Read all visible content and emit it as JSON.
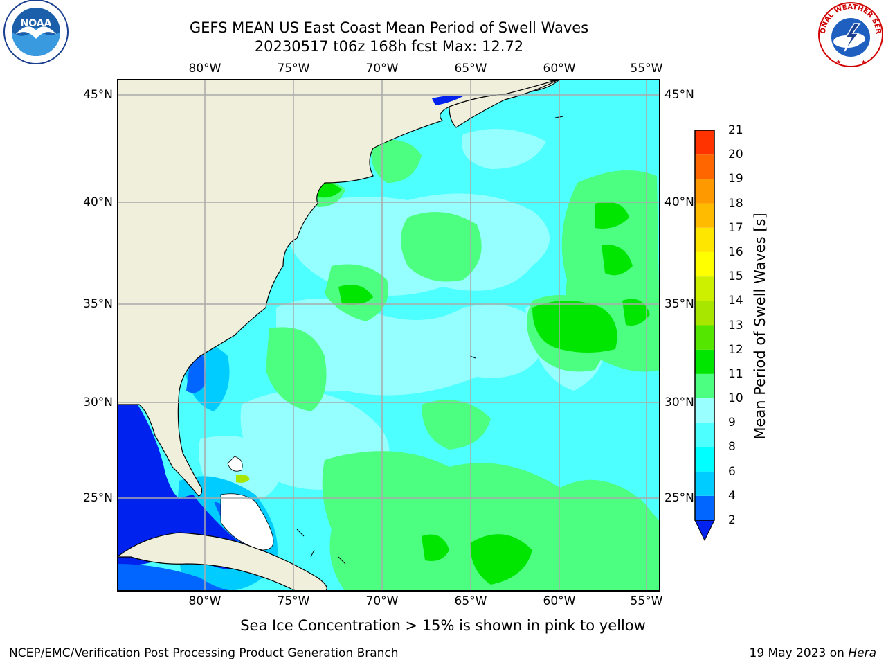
{
  "header": {
    "title_line1": "GEFS MEAN US East Coast Mean Period of Swell Waves",
    "title_line2": "20230517 t06z 168h fcst   Max: 12.72"
  },
  "map": {
    "lon_labels": [
      "80°W",
      "75°W",
      "70°W",
      "65°W",
      "60°W",
      "55°W"
    ],
    "lat_labels": [
      "45°N",
      "40°N",
      "35°N",
      "30°N",
      "25°N"
    ],
    "lon_range": [
      -85,
      -54
    ],
    "lat_range": [
      20.5,
      46.0
    ],
    "ocean_base_color": "#4dffff",
    "land_color": "#efefdc"
  },
  "colorbar": {
    "label": "Mean Period of Swell Waves [s]",
    "ticks": [
      "2",
      "4",
      "6",
      "8",
      "9",
      "10",
      "11",
      "12",
      "13",
      "14",
      "15",
      "16",
      "17",
      "18",
      "19",
      "20",
      "21"
    ],
    "colors": [
      "#0066ff",
      "#00ccff",
      "#00ffff",
      "#4dffff",
      "#99ffff",
      "#4dff80",
      "#00e600",
      "#55e600",
      "#a8e600",
      "#ccf000",
      "#ffff00",
      "#ffe600",
      "#ffbb00",
      "#ff9900",
      "#ff6600",
      "#ff3300",
      "#ff0000"
    ],
    "extend_color": "#0022ee"
  },
  "note": "Sea Ice Concentration > 15% is shown in pink to yellow",
  "footer": {
    "left": "NCEP/EMC/Verification Post Processing Product Generation Branch",
    "date": "19 May 2023 on ",
    "machine": "Hera"
  },
  "logos": {
    "noaa_text": "NOAA",
    "nws_text": "NATIONAL WEATHER SERVICE"
  }
}
